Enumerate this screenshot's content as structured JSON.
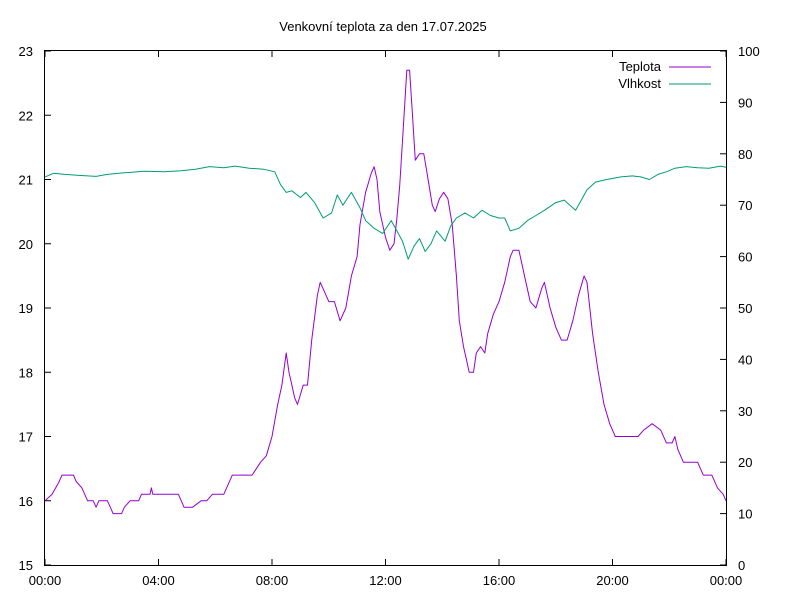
{
  "chart_data": {
    "type": "line",
    "title": "Venkovní teplota za den 17.07.2025",
    "legend_position": "top-right",
    "grid": false,
    "x_axis": {
      "range_hours": [
        0,
        24
      ],
      "ticks": [
        {
          "value": 0,
          "label": "00:00"
        },
        {
          "value": 4,
          "label": "04:00"
        },
        {
          "value": 8,
          "label": "08:00"
        },
        {
          "value": 12,
          "label": "12:00"
        },
        {
          "value": 16,
          "label": "16:00"
        },
        {
          "value": 20,
          "label": "20:00"
        },
        {
          "value": 24,
          "label": "00:00"
        }
      ]
    },
    "y_axis_left": {
      "range": [
        15,
        23
      ],
      "ticks": [
        "15",
        "16",
        "17",
        "18",
        "19",
        "20",
        "21",
        "22",
        "23"
      ]
    },
    "y_axis_right": {
      "range": [
        0,
        100
      ],
      "ticks": [
        "0",
        "10",
        "20",
        "30",
        "40",
        "50",
        "60",
        "70",
        "80",
        "90",
        "100"
      ]
    },
    "series": [
      {
        "name": "Teplota",
        "axis": "left",
        "color": "#9400d3",
        "points": [
          [
            0.0,
            16.0
          ],
          [
            0.25,
            16.1
          ],
          [
            0.5,
            16.3
          ],
          [
            0.6,
            16.4
          ],
          [
            1.0,
            16.4
          ],
          [
            1.1,
            16.3
          ],
          [
            1.3,
            16.2
          ],
          [
            1.5,
            16.0
          ],
          [
            1.7,
            16.0
          ],
          [
            1.8,
            15.9
          ],
          [
            1.9,
            16.0
          ],
          [
            2.2,
            16.0
          ],
          [
            2.3,
            15.9
          ],
          [
            2.4,
            15.8
          ],
          [
            2.7,
            15.8
          ],
          [
            2.8,
            15.9
          ],
          [
            3.0,
            16.0
          ],
          [
            3.3,
            16.0
          ],
          [
            3.4,
            16.1
          ],
          [
            3.7,
            16.1
          ],
          [
            3.75,
            16.2
          ],
          [
            3.8,
            16.1
          ],
          [
            4.7,
            16.1
          ],
          [
            4.9,
            15.9
          ],
          [
            5.2,
            15.9
          ],
          [
            5.5,
            16.0
          ],
          [
            5.7,
            16.0
          ],
          [
            5.9,
            16.1
          ],
          [
            6.3,
            16.1
          ],
          [
            6.6,
            16.4
          ],
          [
            7.3,
            16.4
          ],
          [
            7.6,
            16.6
          ],
          [
            7.8,
            16.7
          ],
          [
            8.0,
            17.0
          ],
          [
            8.2,
            17.5
          ],
          [
            8.35,
            17.8
          ],
          [
            8.5,
            18.3
          ],
          [
            8.6,
            18.0
          ],
          [
            8.8,
            17.6
          ],
          [
            8.9,
            17.5
          ],
          [
            9.1,
            17.8
          ],
          [
            9.25,
            17.8
          ],
          [
            9.4,
            18.5
          ],
          [
            9.6,
            19.2
          ],
          [
            9.7,
            19.4
          ],
          [
            9.8,
            19.3
          ],
          [
            10.0,
            19.1
          ],
          [
            10.2,
            19.1
          ],
          [
            10.4,
            18.8
          ],
          [
            10.6,
            19.0
          ],
          [
            10.8,
            19.5
          ],
          [
            11.0,
            19.8
          ],
          [
            11.1,
            20.3
          ],
          [
            11.3,
            20.8
          ],
          [
            11.5,
            21.1
          ],
          [
            11.6,
            21.2
          ],
          [
            11.7,
            21.0
          ],
          [
            11.8,
            20.5
          ],
          [
            12.0,
            20.1
          ],
          [
            12.15,
            19.9
          ],
          [
            12.3,
            20.0
          ],
          [
            12.4,
            20.4
          ],
          [
            12.5,
            20.9
          ],
          [
            12.6,
            21.6
          ],
          [
            12.75,
            22.7
          ],
          [
            12.85,
            22.7
          ],
          [
            12.95,
            22.0
          ],
          [
            13.05,
            21.3
          ],
          [
            13.2,
            21.4
          ],
          [
            13.35,
            21.4
          ],
          [
            13.5,
            21.0
          ],
          [
            13.65,
            20.6
          ],
          [
            13.75,
            20.5
          ],
          [
            13.9,
            20.7
          ],
          [
            14.05,
            20.8
          ],
          [
            14.2,
            20.7
          ],
          [
            14.35,
            20.3
          ],
          [
            14.5,
            19.5
          ],
          [
            14.6,
            18.8
          ],
          [
            14.75,
            18.4
          ],
          [
            14.85,
            18.2
          ],
          [
            14.95,
            18.0
          ],
          [
            15.1,
            18.0
          ],
          [
            15.2,
            18.3
          ],
          [
            15.35,
            18.4
          ],
          [
            15.5,
            18.3
          ],
          [
            15.6,
            18.6
          ],
          [
            15.8,
            18.9
          ],
          [
            16.0,
            19.1
          ],
          [
            16.2,
            19.4
          ],
          [
            16.4,
            19.8
          ],
          [
            16.5,
            19.9
          ],
          [
            16.7,
            19.9
          ],
          [
            16.9,
            19.5
          ],
          [
            17.1,
            19.1
          ],
          [
            17.3,
            19.0
          ],
          [
            17.5,
            19.3
          ],
          [
            17.6,
            19.4
          ],
          [
            17.8,
            19.0
          ],
          [
            18.0,
            18.7
          ],
          [
            18.2,
            18.5
          ],
          [
            18.4,
            18.5
          ],
          [
            18.6,
            18.8
          ],
          [
            18.8,
            19.2
          ],
          [
            19.0,
            19.5
          ],
          [
            19.1,
            19.4
          ],
          [
            19.3,
            18.6
          ],
          [
            19.5,
            18.0
          ],
          [
            19.7,
            17.5
          ],
          [
            19.9,
            17.2
          ],
          [
            20.1,
            17.0
          ],
          [
            20.3,
            17.0
          ],
          [
            20.9,
            17.0
          ],
          [
            21.1,
            17.1
          ],
          [
            21.4,
            17.2
          ],
          [
            21.7,
            17.1
          ],
          [
            21.9,
            16.9
          ],
          [
            22.1,
            16.9
          ],
          [
            22.2,
            17.0
          ],
          [
            22.3,
            16.8
          ],
          [
            22.5,
            16.6
          ],
          [
            23.0,
            16.6
          ],
          [
            23.2,
            16.4
          ],
          [
            23.5,
            16.4
          ],
          [
            23.7,
            16.2
          ],
          [
            23.9,
            16.1
          ],
          [
            24.0,
            16.0
          ]
        ]
      },
      {
        "name": "Vlhkost",
        "axis": "right",
        "color": "#009e73",
        "points": [
          [
            0.0,
            75.5
          ],
          [
            0.3,
            76.2
          ],
          [
            0.7,
            76.0
          ],
          [
            1.2,
            75.8
          ],
          [
            1.8,
            75.6
          ],
          [
            2.2,
            76.0
          ],
          [
            2.8,
            76.3
          ],
          [
            3.5,
            76.6
          ],
          [
            4.2,
            76.5
          ],
          [
            4.8,
            76.7
          ],
          [
            5.3,
            77.0
          ],
          [
            5.8,
            77.5
          ],
          [
            6.3,
            77.3
          ],
          [
            6.7,
            77.6
          ],
          [
            7.2,
            77.2
          ],
          [
            7.7,
            77.0
          ],
          [
            8.1,
            76.5
          ],
          [
            8.3,
            74.0
          ],
          [
            8.5,
            72.5
          ],
          [
            8.7,
            72.8
          ],
          [
            9.0,
            71.5
          ],
          [
            9.2,
            72.5
          ],
          [
            9.5,
            70.5
          ],
          [
            9.8,
            67.5
          ],
          [
            10.1,
            68.5
          ],
          [
            10.3,
            72.0
          ],
          [
            10.5,
            70.0
          ],
          [
            10.8,
            72.5
          ],
          [
            11.1,
            69.5
          ],
          [
            11.3,
            67.0
          ],
          [
            11.6,
            65.5
          ],
          [
            11.9,
            64.5
          ],
          [
            12.2,
            67.0
          ],
          [
            12.4,
            65.0
          ],
          [
            12.6,
            63.0
          ],
          [
            12.8,
            59.5
          ],
          [
            13.0,
            62.0
          ],
          [
            13.2,
            63.5
          ],
          [
            13.4,
            61.0
          ],
          [
            13.6,
            62.5
          ],
          [
            13.8,
            65.0
          ],
          [
            14.1,
            63.0
          ],
          [
            14.3,
            66.0
          ],
          [
            14.5,
            67.5
          ],
          [
            14.8,
            68.5
          ],
          [
            15.1,
            67.5
          ],
          [
            15.4,
            69.0
          ],
          [
            15.7,
            68.0
          ],
          [
            16.0,
            67.5
          ],
          [
            16.2,
            67.5
          ],
          [
            16.4,
            65.0
          ],
          [
            16.7,
            65.5
          ],
          [
            17.0,
            67.0
          ],
          [
            17.3,
            68.0
          ],
          [
            17.6,
            69.0
          ],
          [
            18.0,
            70.5
          ],
          [
            18.3,
            71.0
          ],
          [
            18.5,
            70.0
          ],
          [
            18.7,
            69.0
          ],
          [
            18.9,
            71.0
          ],
          [
            19.1,
            73.0
          ],
          [
            19.4,
            74.5
          ],
          [
            19.8,
            75.0
          ],
          [
            20.3,
            75.5
          ],
          [
            20.7,
            75.7
          ],
          [
            21.0,
            75.5
          ],
          [
            21.3,
            75.0
          ],
          [
            21.6,
            76.0
          ],
          [
            21.9,
            76.5
          ],
          [
            22.2,
            77.2
          ],
          [
            22.6,
            77.5
          ],
          [
            23.0,
            77.3
          ],
          [
            23.4,
            77.2
          ],
          [
            23.8,
            77.6
          ],
          [
            24.0,
            77.4
          ]
        ]
      }
    ]
  }
}
